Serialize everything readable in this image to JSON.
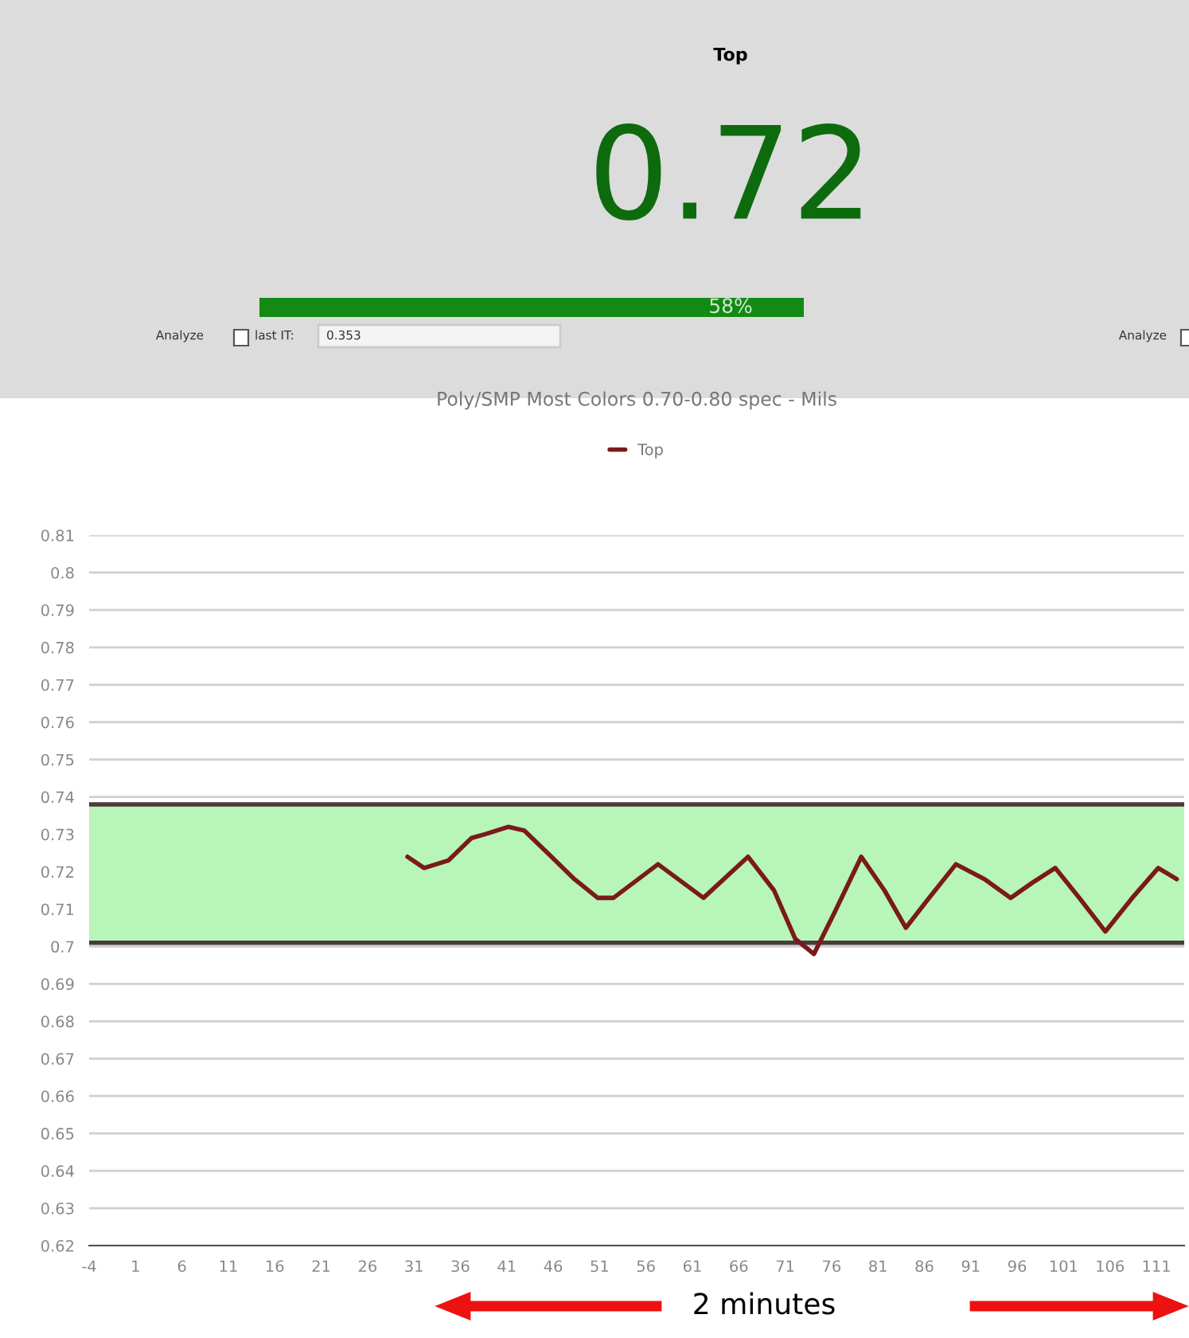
{
  "chart_data": {
    "type": "line",
    "title": "Poly/SMP Most Colors 0.70-0.80 spec - Mils",
    "series": [
      {
        "name": "Top",
        "color": "#7a1a1a",
        "x": [
          30.3,
          32.1,
          34.7,
          37.2,
          38.6,
          41.2,
          42.9,
          45.4,
          48.3,
          50.8,
          52.5,
          57.3,
          62.2,
          67.0,
          69.8,
          72.1,
          74.1,
          76.3,
          79.2,
          81.7,
          84.0,
          86.2,
          89.4,
          92.5,
          95.3,
          97.6,
          100.1,
          102.7,
          105.5,
          108.4,
          111.2,
          113.2
        ],
        "values": [
          0.724,
          0.721,
          0.723,
          0.729,
          0.73,
          0.732,
          0.731,
          0.725,
          0.718,
          0.713,
          0.713,
          0.722,
          0.713,
          0.724,
          0.715,
          0.702,
          0.698,
          0.709,
          0.724,
          0.715,
          0.705,
          0.712,
          0.722,
          0.718,
          0.713,
          0.717,
          0.721,
          0.713,
          0.704,
          0.713,
          0.721,
          0.718
        ]
      }
    ],
    "bands": [
      {
        "axis": "y",
        "from": 0.701,
        "to": 0.738,
        "color": "#b8f5b8"
      }
    ],
    "ref_lines": [
      {
        "axis": "y",
        "value": 0.738,
        "color": "#4a3a3a"
      },
      {
        "axis": "y",
        "value": 0.701,
        "color": "#4a3a3a"
      }
    ],
    "xlim": [
      -4,
      114
    ],
    "xticks": [
      -4,
      1,
      6,
      11,
      16,
      21,
      26,
      31,
      36,
      41,
      46,
      51,
      56,
      61,
      66,
      71,
      76,
      81,
      86,
      91,
      96,
      101,
      106,
      111
    ],
    "ylim": [
      0.62,
      0.81
    ],
    "yticks": [
      0.62,
      0.63,
      0.64,
      0.65,
      0.66,
      0.67,
      0.68,
      0.69,
      0.7,
      0.71,
      0.72,
      0.73,
      0.74,
      0.75,
      0.76,
      0.77,
      0.78,
      0.79,
      0.8,
      0.81
    ],
    "grid": "y",
    "legend": "top",
    "marker": "none",
    "line_style": "solid",
    "annotations": [
      "Top",
      "0.72",
      "58%",
      "Analyze",
      "last IT:",
      "0.353",
      "Analyze",
      "2 minutes"
    ]
  }
}
